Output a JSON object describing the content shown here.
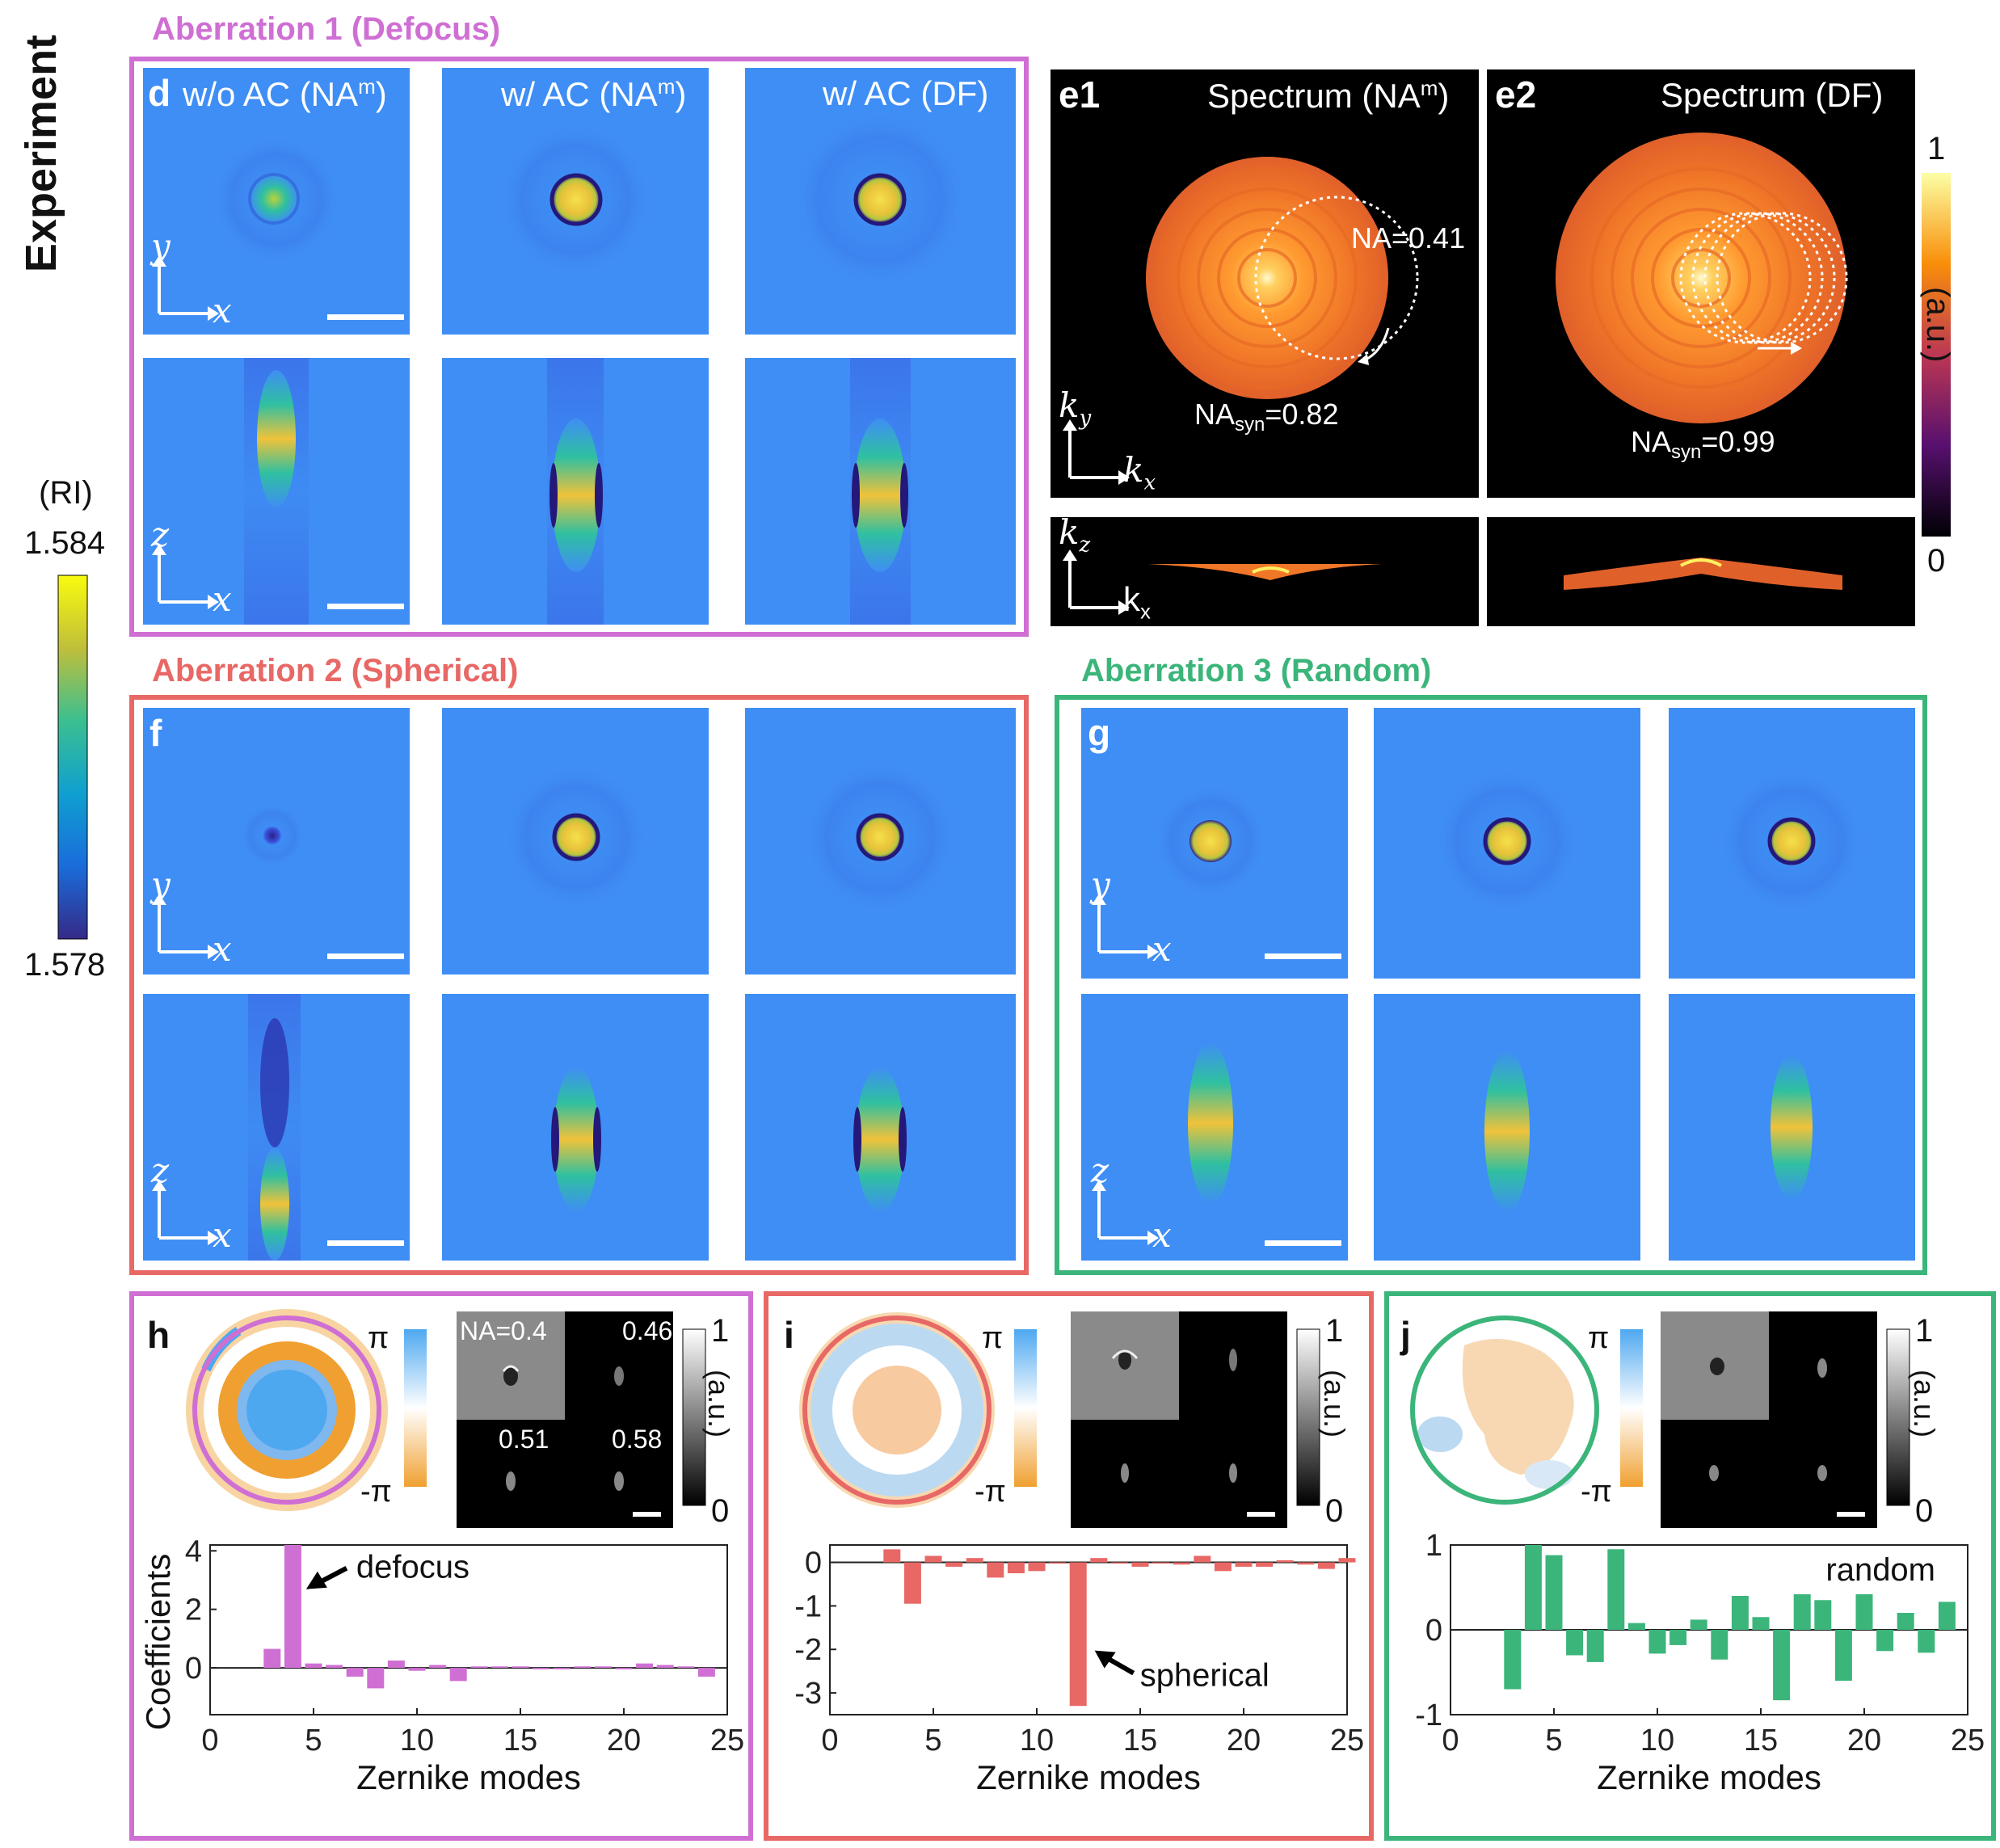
{
  "sections": {
    "ab1": "Aberration 1 (Defocus)",
    "ab2": "Aberration 2 (Spherical)",
    "ab3": "Aberration 3 (Random)",
    "experiment": "Experiment"
  },
  "colors": {
    "ab1": "#cf6fd4",
    "ab2": "#e86866",
    "ab3": "#3bb57a",
    "ri_bg": "#3f8ef5"
  },
  "panel_d": {
    "letter": "d",
    "col1": "w/o AC (NA",
    "col2": "w/ AC (NA",
    "col3": "w/ AC (DF)",
    "sup": "m",
    "close": ")"
  },
  "panel_e": {
    "e1_letter": "e1",
    "e1_title": "Spectrum (NA",
    "e1_sup": "m",
    "e1_close": ")",
    "e2_letter": "e2",
    "e2_title": "Spectrum (DF)",
    "na_label": "NA=0.41",
    "nasyn1": "0.82",
    "nasyn2": "0.99",
    "na_prefix": "NA",
    "syn": "syn",
    "eq": "=",
    "cb_max": "1",
    "cb_min": "0",
    "cb_unit": "(a.u.)"
  },
  "axes_labels": {
    "x": "x",
    "y": "y",
    "z": "z",
    "k": "k",
    "ksub_x": "x",
    "ksub_y": "y",
    "ksub_z": "z"
  },
  "ri_colorbar": {
    "label": "(RI)",
    "max": "1.584",
    "min": "1.578"
  },
  "panel_f": {
    "letter": "f"
  },
  "panel_g": {
    "letter": "g"
  },
  "panel_h": {
    "letter": "h",
    "pi": "π",
    "neg_pi": "-π",
    "na_labels": [
      "NA=0.4",
      "0.46",
      "0.51",
      "0.58"
    ],
    "cb_max": "1",
    "cb_min": "0",
    "cb_unit": "(a.u.)",
    "annotation": "defocus"
  },
  "panel_i": {
    "letter": "i",
    "pi": "π",
    "neg_pi": "-π",
    "cb_max": "1",
    "cb_min": "0",
    "cb_unit": "(a.u.)",
    "annotation": "spherical"
  },
  "panel_j": {
    "letter": "j",
    "pi": "π",
    "neg_pi": "-π",
    "cb_max": "1",
    "cb_min": "0",
    "cb_unit": "(a.u.)",
    "annotation": "random"
  },
  "chart_data": [
    {
      "type": "bar",
      "panel": "h",
      "xlabel": "Zernike modes",
      "ylabel": "Coefficients",
      "xlim": [
        0,
        25
      ],
      "ylim": [
        -1.6,
        4.2
      ],
      "xticks": [
        0,
        5,
        10,
        15,
        20,
        25
      ],
      "yticks": [
        0,
        2,
        4
      ],
      "x": [
        3,
        4,
        5,
        6,
        7,
        8,
        9,
        10,
        11,
        12,
        13,
        14,
        15,
        16,
        17,
        18,
        19,
        20,
        21,
        22,
        23,
        24
      ],
      "values": [
        0.65,
        4.2,
        0.15,
        0.1,
        -0.3,
        -0.7,
        0.25,
        -0.1,
        0.1,
        -0.45,
        0.05,
        0.05,
        0.05,
        -0.05,
        -0.05,
        0.05,
        0.05,
        -0.05,
        0.15,
        0.1,
        0.05,
        -0.3
      ]
    },
    {
      "type": "bar",
      "panel": "i",
      "xlabel": "Zernike modes",
      "ylabel": "",
      "xlim": [
        0,
        25
      ],
      "ylim": [
        -3.5,
        0.4
      ],
      "xticks": [
        0,
        5,
        10,
        15,
        20,
        25
      ],
      "yticks": [
        0,
        -1,
        -2,
        -3
      ],
      "x": [
        3,
        4,
        5,
        6,
        7,
        8,
        9,
        10,
        11,
        12,
        13,
        14,
        15,
        16,
        17,
        18,
        19,
        20,
        21,
        22,
        23,
        24,
        25
      ],
      "values": [
        0.3,
        -0.95,
        0.15,
        -0.1,
        0.1,
        -0.35,
        -0.25,
        -0.2,
        0.0,
        -3.3,
        0.1,
        0.0,
        -0.1,
        0.0,
        -0.05,
        0.15,
        -0.2,
        -0.1,
        -0.1,
        0.05,
        -0.05,
        -0.15,
        0.1
      ]
    },
    {
      "type": "bar",
      "panel": "j",
      "xlabel": "Zernike modes",
      "ylabel": "",
      "xlim": [
        0,
        25
      ],
      "ylim": [
        -1,
        1
      ],
      "xticks": [
        0,
        5,
        10,
        15,
        20,
        25
      ],
      "yticks": [
        1,
        0,
        -1
      ],
      "x": [
        3,
        4,
        5,
        6,
        7,
        8,
        9,
        10,
        11,
        12,
        13,
        14,
        15,
        16,
        17,
        18,
        19,
        20,
        21,
        22,
        23,
        24
      ],
      "values": [
        -0.7,
        1.0,
        0.88,
        -0.3,
        -0.38,
        0.95,
        0.08,
        -0.28,
        -0.18,
        0.12,
        -0.35,
        0.4,
        0.15,
        -0.83,
        0.42,
        0.35,
        -0.6,
        0.42,
        -0.25,
        0.2,
        -0.27,
        0.33
      ]
    }
  ]
}
